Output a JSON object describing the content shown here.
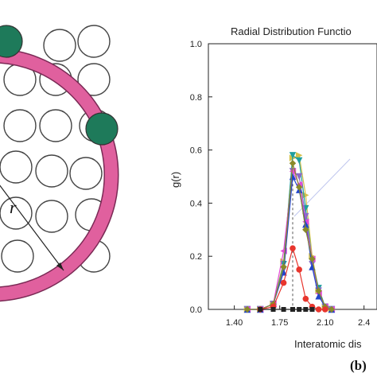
{
  "figure": {
    "left_panel": {
      "radius_label": "r",
      "colors": {
        "ring": "#e0609e",
        "ring_stroke": "#7a2a55",
        "neighbor_atom": "#1e7a5a",
        "atom_stroke": "#444444"
      }
    },
    "panel_label": "(b)"
  },
  "chart_data": {
    "type": "line",
    "title": "Radial Distribution Functio",
    "xlabel": "Interatomic dis",
    "ylabel": "g(r)",
    "xlim": [
      1.2,
      2.5
    ],
    "ylim": [
      0.0,
      1.0
    ],
    "x_ticks": [
      "1.40",
      "1.75",
      "2.10",
      "2.4"
    ],
    "y_ticks": [
      "0.0",
      "0.2",
      "0.4",
      "0.6",
      "0.8",
      "1.0"
    ],
    "grid": false,
    "reference_line_x": 1.85,
    "series": [
      {
        "color": "#d4c14a",
        "marker": "triangle-right",
        "x": [
          1.5,
          1.6,
          1.7,
          1.78,
          1.85,
          1.9,
          1.95,
          2.0,
          2.05,
          2.1,
          2.15
        ],
        "y": [
          0.0,
          0.0,
          0.02,
          0.18,
          0.57,
          0.58,
          0.43,
          0.2,
          0.07,
          0.01,
          0.0
        ]
      },
      {
        "color": "#1f9e9e",
        "marker": "triangle-down",
        "x": [
          1.5,
          1.6,
          1.7,
          1.78,
          1.85,
          1.9,
          1.95,
          2.0,
          2.05,
          2.1,
          2.15
        ],
        "y": [
          0.0,
          0.0,
          0.02,
          0.17,
          0.58,
          0.56,
          0.38,
          0.18,
          0.08,
          0.01,
          0.0
        ]
      },
      {
        "color": "#8a6bc8",
        "marker": "triangle-down",
        "x": [
          1.5,
          1.6,
          1.7,
          1.78,
          1.85,
          1.9,
          1.95,
          2.0,
          2.05,
          2.1,
          2.15
        ],
        "y": [
          0.0,
          0.0,
          0.02,
          0.15,
          0.52,
          0.5,
          0.35,
          0.17,
          0.07,
          0.01,
          0.0
        ]
      },
      {
        "color": "#e24bd8",
        "marker": "triangle-left",
        "x": [
          1.5,
          1.6,
          1.7,
          1.78,
          1.85,
          1.9,
          1.95,
          2.0,
          2.05,
          2.1,
          2.15
        ],
        "y": [
          0.0,
          0.0,
          0.02,
          0.22,
          0.52,
          0.47,
          0.33,
          0.19,
          0.06,
          0.01,
          0.0
        ]
      },
      {
        "color": "#2246cc",
        "marker": "triangle-up",
        "x": [
          1.5,
          1.6,
          1.7,
          1.78,
          1.85,
          1.9,
          1.95,
          2.0,
          2.05,
          2.1,
          2.15
        ],
        "y": [
          0.0,
          0.0,
          0.02,
          0.14,
          0.5,
          0.45,
          0.32,
          0.16,
          0.05,
          0.01,
          0.0
        ]
      },
      {
        "color": "#8a8a2a",
        "marker": "diamond",
        "x": [
          1.5,
          1.6,
          1.7,
          1.78,
          1.85,
          1.9,
          1.95,
          2.0,
          2.05,
          2.1,
          2.15
        ],
        "y": [
          0.0,
          0.0,
          0.02,
          0.16,
          0.55,
          0.46,
          0.3,
          0.19,
          0.07,
          0.01,
          0.0
        ]
      },
      {
        "color": "#e8352d",
        "marker": "circle",
        "x": [
          1.6,
          1.7,
          1.78,
          1.85,
          1.9,
          1.95,
          2.0,
          2.05,
          2.1
        ],
        "y": [
          0.0,
          0.01,
          0.1,
          0.23,
          0.15,
          0.04,
          0.01,
          0.0,
          0.0
        ]
      },
      {
        "color": "#222222",
        "marker": "square",
        "x": [
          1.6,
          1.7,
          1.78,
          1.85,
          1.9,
          1.95,
          2.0
        ],
        "y": [
          0.0,
          0.0,
          0.0,
          0.0,
          0.0,
          0.0,
          0.0
        ]
      }
    ]
  }
}
